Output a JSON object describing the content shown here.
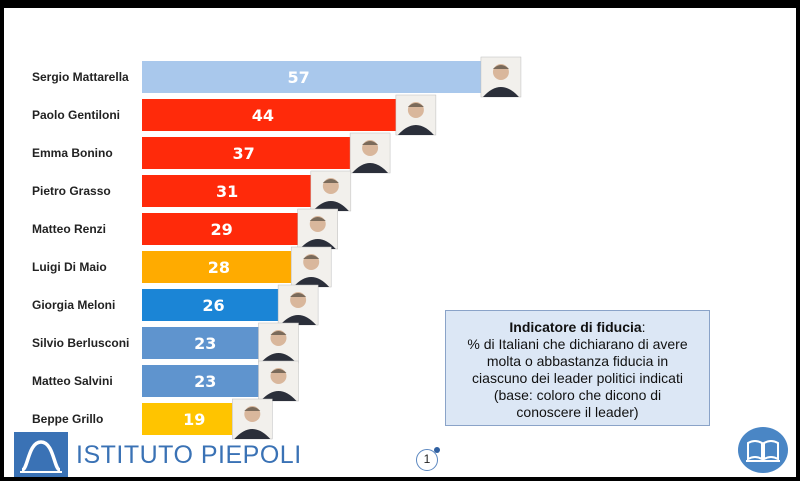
{
  "chart_data": {
    "type": "bar",
    "orientation": "horizontal",
    "categories": [
      "Sergio Mattarella",
      "Paolo Gentiloni",
      "Emma Bonino",
      "Pietro Grasso",
      "Matteo Renzi",
      "Luigi Di Maio",
      "Giorgia Meloni",
      "Silvio Berlusconi",
      "Matteo Salvini",
      "Beppe Grillo"
    ],
    "values": [
      57,
      44,
      37,
      31,
      29,
      28,
      26,
      23,
      23,
      19
    ],
    "colors": [
      "#a9c8ec",
      "#ff2a0a",
      "#ff2a0a",
      "#ff2a0a",
      "#ff2a0a",
      "#ffab00",
      "#1b85d6",
      "#5f94ce",
      "#5f94ce",
      "#ffc400"
    ],
    "xlim": [
      0,
      70
    ],
    "grid": false,
    "legend": false,
    "value_labels": true
  },
  "info_box": {
    "title": "Indicatore di fiducia",
    "title_suffix": ":",
    "lines": [
      "% di Italiani che dichiarano di avere",
      "molta o abbastanza fiducia in",
      "ciascuno dei leader politici indicati",
      "(base: coloro che dicono di",
      "conoscere il leader)"
    ]
  },
  "footer": {
    "logo_text": "ISTITUTO PIEPOLI",
    "page_number": "1"
  },
  "icons": {
    "logo": "piepoli-logo-icon",
    "book": "book-icon",
    "portrait": "portrait-photo-icon"
  }
}
